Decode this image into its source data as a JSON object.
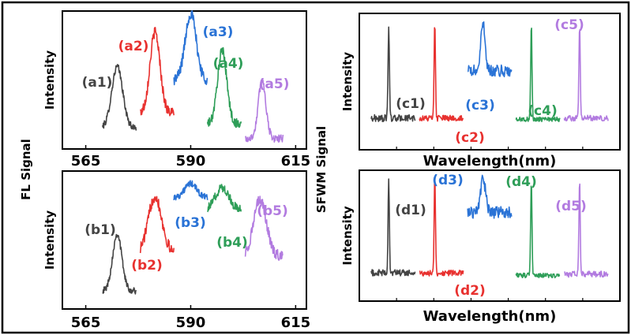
{
  "figure": {
    "left_group_label": "FL Signal",
    "right_group_label": "SFWM Signal"
  },
  "chart_data": [
    {
      "id": "a",
      "type": "line",
      "ylabel": "Intensity",
      "xlabel": "",
      "xlim": [
        560,
        617
      ],
      "ylim": [
        0,
        1
      ],
      "xticks": [
        565,
        590,
        615
      ],
      "tick_labels": [
        "565",
        "590",
        "615"
      ],
      "series": [
        {
          "label": "(a1)",
          "color": "#444444",
          "x_range": [
            569,
            577
          ],
          "center": 572.5,
          "peak": 0.6,
          "baseline": 0.14,
          "width": 1.3,
          "noise": 0.025
        },
        {
          "label": "(a2)",
          "color": "#e8312f",
          "x_range": [
            578,
            586
          ],
          "center": 581.5,
          "peak": 0.86,
          "baseline": 0.25,
          "width": 1.2,
          "noise": 0.04
        },
        {
          "label": "(a3)",
          "color": "#2a73d6",
          "x_range": [
            586,
            594
          ],
          "center": 590.0,
          "peak": 1.0,
          "baseline": 0.5,
          "width": 1.3,
          "noise": 0.045
        },
        {
          "label": "(a4)",
          "color": "#2e9e58",
          "x_range": [
            594,
            602
          ],
          "center": 597.5,
          "peak": 0.72,
          "baseline": 0.17,
          "width": 1.1,
          "noise": 0.035
        },
        {
          "label": "(a5)",
          "color": "#b27be0",
          "x_range": [
            603,
            612
          ],
          "center": 607.0,
          "peak": 0.5,
          "baseline": 0.06,
          "width": 0.9,
          "noise": 0.03
        }
      ]
    },
    {
      "id": "b",
      "type": "line",
      "ylabel": "Intensity",
      "xlabel": "",
      "xlim": [
        560,
        617
      ],
      "ylim": [
        0,
        1
      ],
      "xticks": [
        565,
        590,
        615
      ],
      "tick_labels": [
        "565",
        "590",
        "615"
      ],
      "series": [
        {
          "label": "(b1)",
          "color": "#444444",
          "x_range": [
            569,
            577
          ],
          "center": 572.5,
          "peak": 0.55,
          "baseline": 0.1,
          "width": 1.1,
          "noise": 0.025
        },
        {
          "label": "(b2)",
          "color": "#e8312f",
          "x_range": [
            578,
            586
          ],
          "center": 581.5,
          "peak": 0.85,
          "baseline": 0.4,
          "width": 1.6,
          "noise": 0.045
        },
        {
          "label": "(b3)",
          "color": "#2a73d6",
          "x_range": [
            586,
            594
          ],
          "center": 590.0,
          "peak": 0.95,
          "baseline": 0.84,
          "width": 1.4,
          "noise": 0.025
        },
        {
          "label": "(b4)",
          "color": "#2e9e58",
          "x_range": [
            594,
            602
          ],
          "center": 597.5,
          "peak": 0.92,
          "baseline": 0.74,
          "width": 1.6,
          "noise": 0.035
        },
        {
          "label": "(b5)",
          "color": "#b27be0",
          "x_range": [
            603,
            612
          ],
          "center": 606.5,
          "peak": 0.82,
          "baseline": 0.38,
          "width": 1.5,
          "noise": 0.045
        }
      ]
    },
    {
      "id": "c",
      "type": "line",
      "ylabel": "Intensity",
      "xlabel": "Wavelength(nm)",
      "ylim": [
        0,
        1
      ],
      "series": [
        {
          "label": "(c1)",
          "color": "#444444",
          "x_range": [
            0,
            10
          ],
          "center": 4.0,
          "peak": 1.0,
          "baseline": 0.2,
          "width": 0.15,
          "noise": 0.03
        },
        {
          "label": "(c2)",
          "color": "#e8312f",
          "x_range": [
            11,
            21
          ],
          "center": 14.5,
          "peak": 1.0,
          "baseline": 0.2,
          "width": 0.15,
          "noise": 0.025
        },
        {
          "label": "(c3)",
          "color": "#2a73d6",
          "x_range": [
            22,
            32
          ],
          "center": 25.5,
          "peak": 1.0,
          "baseline": 0.6,
          "width": 0.5,
          "noise": 0.05
        },
        {
          "label": "(c4)",
          "color": "#2e9e58",
          "x_range": [
            33,
            43
          ],
          "center": 36.5,
          "peak": 1.0,
          "baseline": 0.19,
          "width": 0.15,
          "noise": 0.02
        },
        {
          "label": "(c5)",
          "color": "#b27be0",
          "x_range": [
            44,
            54
          ],
          "center": 47.5,
          "peak": 1.0,
          "baseline": 0.2,
          "width": 0.15,
          "noise": 0.025
        }
      ]
    },
    {
      "id": "d",
      "type": "line",
      "ylabel": "Intensity",
      "xlabel": "Wavelength(nm)",
      "ylim": [
        0,
        1
      ],
      "series": [
        {
          "label": "(d1)",
          "color": "#444444",
          "x_range": [
            0,
            10
          ],
          "center": 4.0,
          "peak": 1.0,
          "baseline": 0.2,
          "width": 0.15,
          "noise": 0.03
        },
        {
          "label": "(d2)",
          "color": "#e8312f",
          "x_range": [
            11,
            21
          ],
          "center": 14.5,
          "peak": 1.0,
          "baseline": 0.2,
          "width": 0.15,
          "noise": 0.025
        },
        {
          "label": "(d3)",
          "color": "#2a73d6",
          "x_range": [
            22,
            32
          ],
          "center": 25.5,
          "peak": 1.0,
          "baseline": 0.72,
          "width": 0.6,
          "noise": 0.05
        },
        {
          "label": "(d4)",
          "color": "#2e9e58",
          "x_range": [
            33,
            43
          ],
          "center": 36.5,
          "peak": 1.0,
          "baseline": 0.18,
          "width": 0.15,
          "noise": 0.02
        },
        {
          "label": "(d5)",
          "color": "#b27be0",
          "x_range": [
            44,
            54
          ],
          "center": 47.5,
          "peak": 1.0,
          "baseline": 0.19,
          "width": 0.15,
          "noise": 0.025
        }
      ]
    }
  ]
}
